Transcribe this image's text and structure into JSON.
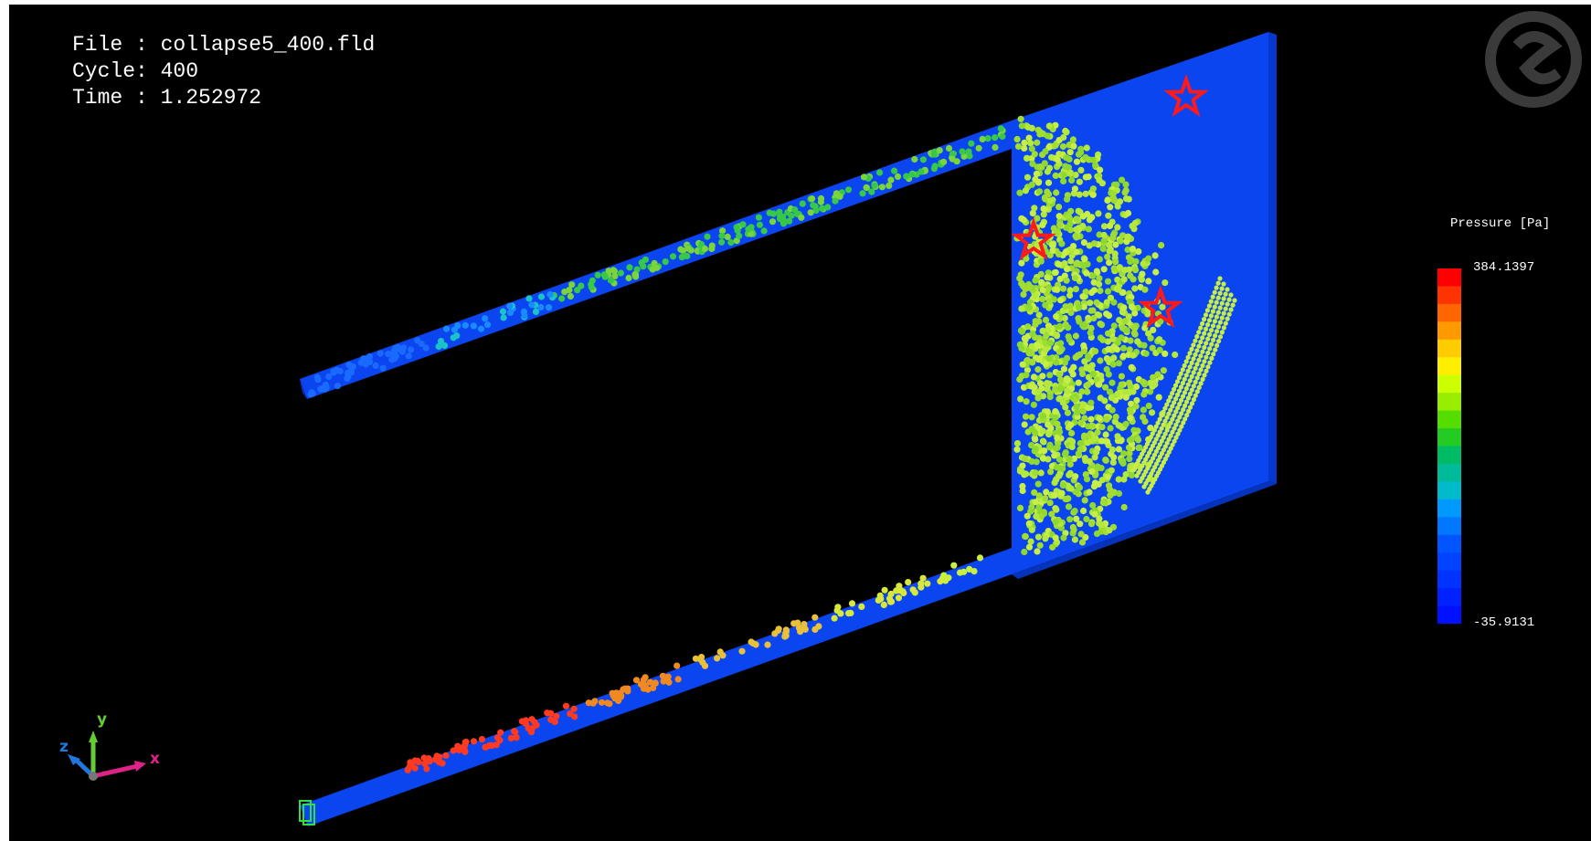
{
  "info": {
    "file": "File : collapse5_400.fld",
    "cycle": "Cycle: 400",
    "time": "Time : 1.252972"
  },
  "legend": {
    "title": "Pressure [Pa]",
    "max": "384.1397",
    "min": "-35.9131",
    "colors": [
      "#ff0000",
      "#ff3300",
      "#ff6600",
      "#ff9900",
      "#ffcc00",
      "#ffee00",
      "#ccff00",
      "#99ee00",
      "#55dd00",
      "#22cc22",
      "#00bb66",
      "#00bb99",
      "#00bbcc",
      "#0099ff",
      "#0077ff",
      "#0055ff",
      "#0044ff",
      "#0033ff",
      "#0022ff",
      "#0011ff"
    ]
  },
  "axes": {
    "x": "x",
    "y": "y",
    "z": "z"
  },
  "icons": {
    "logo": "software-logo-icon",
    "triad": "axis-triad-icon",
    "markers": "star-marker-icon"
  },
  "colors": {
    "background": "#000000",
    "geometry": "#0a45f0",
    "particle_green": "#b4e83a",
    "particle_orange": "#f0a020",
    "marker": "#ff1a1a"
  }
}
